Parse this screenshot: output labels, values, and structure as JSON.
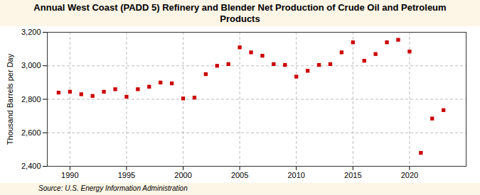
{
  "chart_data": {
    "type": "scatter",
    "title": "Annual West Coast (PADD 5) Refinery and Blender Net Production of Crude Oil and Petroleum Products",
    "ylabel": "Thousand Barrels per Day",
    "caption": "Source: U.S. Energy Information Administration",
    "x": [
      1989,
      1990,
      1991,
      1992,
      1993,
      1994,
      1995,
      1996,
      1997,
      1998,
      1999,
      2000,
      2001,
      2002,
      2003,
      2004,
      2005,
      2006,
      2007,
      2008,
      2009,
      2010,
      2011,
      2012,
      2013,
      2014,
      2015,
      2016,
      2017,
      2018,
      2019,
      2020,
      2021,
      2022,
      2023
    ],
    "values": [
      2840,
      2845,
      2830,
      2820,
      2845,
      2860,
      2815,
      2860,
      2875,
      2900,
      2895,
      2805,
      2810,
      2950,
      3000,
      3010,
      3110,
      3080,
      3060,
      3010,
      3005,
      2935,
      2970,
      3005,
      3010,
      3080,
      3140,
      3030,
      3070,
      3140,
      3155,
      3085,
      2480,
      2685,
      2735
    ],
    "color": "#cc0000",
    "marker": "square",
    "xlim": [
      1988,
      2025
    ],
    "xticks": [
      1990,
      1995,
      2000,
      2005,
      2010,
      2015,
      2020
    ],
    "ylim": [
      2400,
      3200
    ],
    "yticks": [
      {
        "value": 2400,
        "label": "2,400"
      },
      {
        "value": 2600,
        "label": "2,600"
      },
      {
        "value": 2800,
        "label": "2,800"
      },
      {
        "value": 3000,
        "label": "3,000"
      },
      {
        "value": 3200,
        "label": "3,200"
      }
    ],
    "grid": true
  }
}
